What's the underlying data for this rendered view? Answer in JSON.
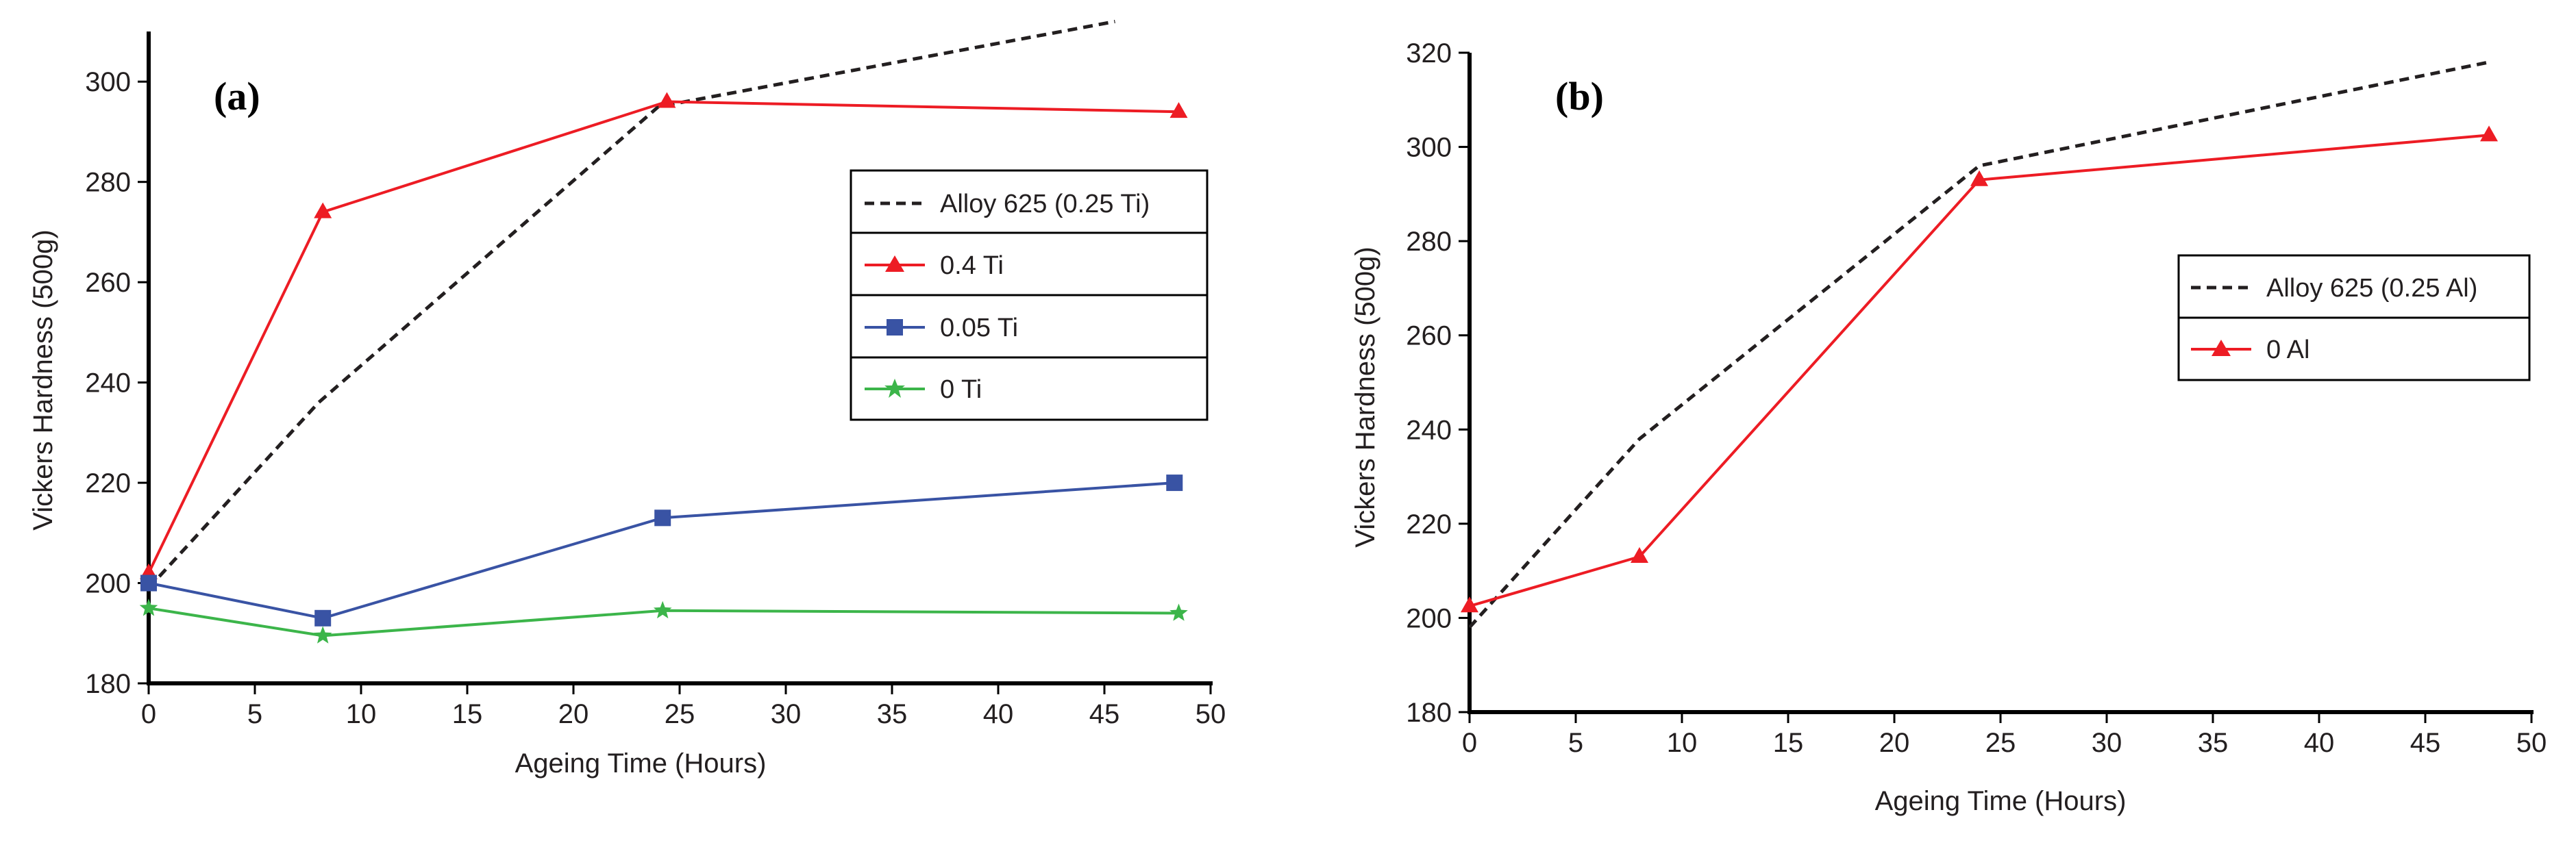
{
  "chart_data": [
    {
      "type": "line",
      "panel_label": "(a)",
      "xlabel": "Ageing Time (Hours)",
      "ylabel": "Vickers Hardness (500g)",
      "xlim": [
        0,
        50
      ],
      "ylim": [
        180,
        310
      ],
      "xticks": [
        0,
        5,
        10,
        15,
        20,
        25,
        30,
        35,
        40,
        45,
        50
      ],
      "yticks": [
        180,
        200,
        220,
        240,
        260,
        280,
        300
      ],
      "legend_position": "center-right",
      "series": [
        {
          "name": "Alloy 625 (0.25 Ti)",
          "color": "#231f20",
          "dash": "dashed",
          "marker": "none",
          "x": [
            0,
            8,
            24,
            45.5
          ],
          "y": [
            199,
            236,
            295,
            312
          ]
        },
        {
          "name": "0.4 Ti",
          "color": "#ed1c24",
          "dash": "solid",
          "marker": "triangle",
          "x": [
            0,
            8.2,
            24.4,
            48.5
          ],
          "y": [
            202,
            274,
            296,
            294
          ]
        },
        {
          "name": "0.05 Ti",
          "color": "#3953a4",
          "dash": "solid",
          "marker": "square",
          "x": [
            0,
            8.2,
            24.2,
            48.3
          ],
          "y": [
            200,
            193,
            213,
            220
          ]
        },
        {
          "name": "0 Ti",
          "color": "#3cb54a",
          "dash": "solid",
          "marker": "star",
          "x": [
            0,
            8.2,
            24.2,
            48.5
          ],
          "y": [
            195,
            189.5,
            194.5,
            194
          ]
        }
      ]
    },
    {
      "type": "line",
      "panel_label": "(b)",
      "xlabel": "Ageing Time (Hours)",
      "ylabel": "Vickers Hardness (500g)",
      "xlim": [
        0,
        50
      ],
      "ylim": [
        180,
        320
      ],
      "xticks": [
        0,
        5,
        10,
        15,
        20,
        25,
        30,
        35,
        40,
        45,
        50
      ],
      "yticks": [
        180,
        200,
        220,
        240,
        260,
        280,
        300,
        320
      ],
      "legend_position": "center-right",
      "series": [
        {
          "name": "Alloy 625 (0.25 Al)",
          "color": "#231f20",
          "dash": "dashed",
          "marker": "none",
          "x": [
            0,
            8,
            24,
            48
          ],
          "y": [
            198,
            238,
            296,
            318
          ]
        },
        {
          "name": "0 Al",
          "color": "#ed1c24",
          "dash": "solid",
          "marker": "triangle",
          "x": [
            0,
            8,
            24,
            48
          ],
          "y": [
            202.5,
            213,
            293,
            302.5
          ]
        }
      ]
    }
  ]
}
